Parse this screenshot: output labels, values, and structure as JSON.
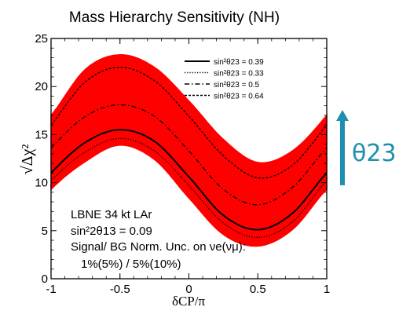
{
  "chart_data": {
    "type": "area",
    "title": "Mass Hierarchy Sensitivity (NH)",
    "xlabel": "δCP/π",
    "ylabel": "√Δχ²",
    "xlim": [
      -1,
      1
    ],
    "ylim": [
      0,
      25
    ],
    "x_ticks": [
      "-1",
      "-0.5",
      "0",
      "0.5",
      "1"
    ],
    "y_ticks": [
      "0",
      "5",
      "10",
      "15",
      "20",
      "25"
    ],
    "legend_position": "top-right",
    "band": {
      "color": "#ff0000",
      "x": [
        -1.0,
        -0.75,
        -0.5,
        -0.25,
        0.0,
        0.25,
        0.5,
        0.75,
        1.0
      ],
      "lower": [
        9.3,
        12.2,
        13.9,
        12.4,
        8.4,
        4.6,
        3.4,
        5.1,
        9.3
      ],
      "upper": [
        17.0,
        21.8,
        23.3,
        22.0,
        18.5,
        14.5,
        12.1,
        13.3,
        17.0
      ]
    },
    "series": [
      {
        "name": "sin²θ23 = 0.39",
        "style": "solid",
        "x": [
          -1.0,
          -0.75,
          -0.5,
          -0.25,
          0.0,
          0.25,
          0.5,
          0.75,
          1.0
        ],
        "y": [
          11.0,
          14.2,
          15.5,
          14.3,
          10.6,
          6.6,
          5.1,
          6.8,
          11.0
        ]
      },
      {
        "name": "sin²θ23 = 0.33",
        "style": "dotted",
        "x": [
          -1.0,
          -0.75,
          -0.5,
          -0.25,
          0.0,
          0.25,
          0.5,
          0.75,
          1.0
        ],
        "y": [
          10.2,
          13.2,
          14.6,
          13.3,
          9.7,
          5.8,
          4.3,
          5.9,
          10.2
        ]
      },
      {
        "name": "sin²θ23 = 0.5",
        "style": "dashdot",
        "x": [
          -1.0,
          -0.75,
          -0.5,
          -0.25,
          0.0,
          0.25,
          0.5,
          0.75,
          1.0
        ],
        "y": [
          13.6,
          16.9,
          18.1,
          16.9,
          13.3,
          9.3,
          7.7,
          9.5,
          13.6
        ]
      },
      {
        "name": "sin²θ23 = 0.64",
        "style": "dashed",
        "x": [
          -1.0,
          -0.75,
          -0.5,
          -0.25,
          0.0,
          0.25,
          0.5,
          0.75,
          1.0
        ],
        "y": [
          16.0,
          20.5,
          22.0,
          20.6,
          16.9,
          12.8,
          10.5,
          11.8,
          16.0
        ]
      }
    ],
    "annotations": [
      "LBNE 34 kt LAr",
      "sin²2θ13 = 0.09",
      "Signal/ BG Norm. Unc. on νe(νμ):",
      "1%(5%) / 5%(10%)"
    ],
    "side_label": "θ23",
    "colors": {
      "band": "#ff0000",
      "arrow": "#1e8fb0"
    }
  }
}
